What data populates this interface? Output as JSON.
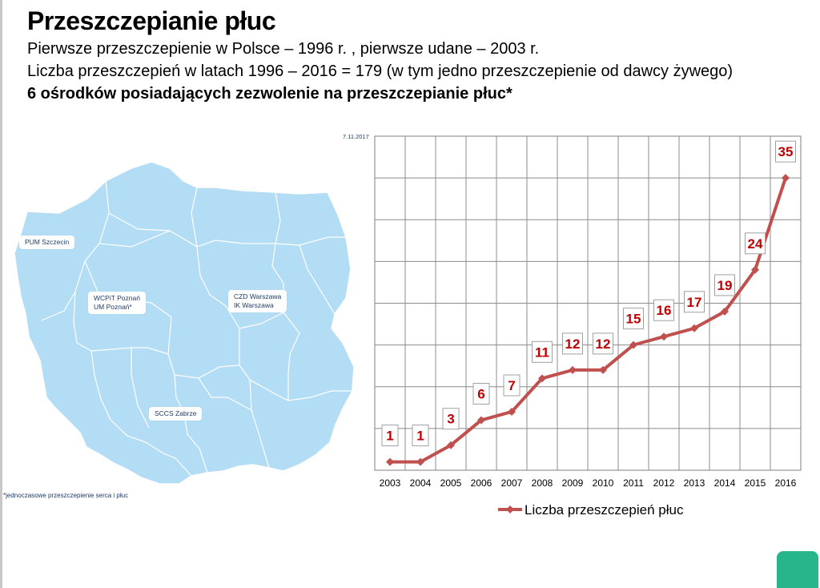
{
  "title": "Przeszczepianie płuc",
  "subtitle_line1": "Pierwsze przeszczepienie w Polsce – 1996 r. , pierwsze udane – 2003 r.",
  "subtitle_line2": "Liczba przeszczepień w latach  1996 – 2016 = 179 (w tym jedno przeszczepienie od dawcy żywego)",
  "subtitle_line3": "6 ośrodków posiadających zezwolenie na przeszczepianie płuc*",
  "map": {
    "fill_color": "#b3dcf5",
    "border_color": "#ffffff",
    "centers": {
      "szczecin": "PUM Szczecin",
      "poznan_1": "WCPiT Poznań",
      "poznan_2": "UM Poznań*",
      "warszawa_1": "CZD Warszawa",
      "warszawa_2": "IK Warszawa",
      "zabrze": "SCCS Zabrze"
    }
  },
  "footnote": "*jednoczasowe przeszczepienie serca i płuc",
  "date_label": "7.11.2017",
  "chart_data": {
    "type": "line",
    "categories": [
      "2003",
      "2004",
      "2005",
      "2006",
      "2007",
      "2008",
      "2009",
      "2010",
      "2011",
      "2012",
      "2013",
      "2014",
      "2015",
      "2016"
    ],
    "series": [
      {
        "name": "Liczba przeszczepień płuc",
        "color": "#c0504d",
        "values": [
          1,
          1,
          3,
          6,
          7,
          11,
          12,
          12,
          15,
          16,
          17,
          19,
          24,
          35
        ]
      }
    ],
    "ylim": [
      0,
      40
    ],
    "y_gridlines": 8,
    "grid": true,
    "data_labels": true,
    "label_color": "#c00000",
    "legend_position": "bottom"
  }
}
